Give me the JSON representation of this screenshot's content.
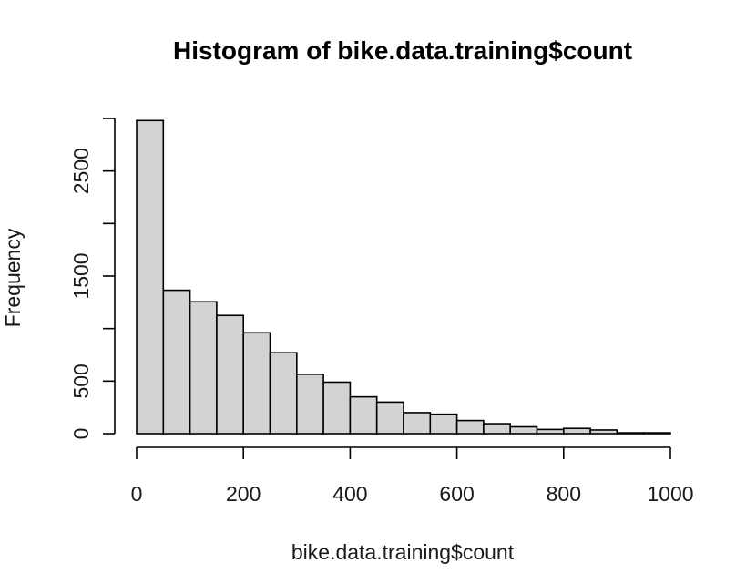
{
  "chart_data": {
    "type": "bar",
    "title": "Histogram of bike.data.training$count",
    "xlabel": "bike.data.training$count",
    "ylabel": "Frequency",
    "bin_width": 50,
    "bin_edges": [
      0,
      50,
      100,
      150,
      200,
      250,
      300,
      350,
      400,
      450,
      500,
      550,
      600,
      650,
      700,
      750,
      800,
      850,
      900,
      950,
      1000
    ],
    "values": [
      2980,
      1365,
      1255,
      1125,
      960,
      770,
      565,
      490,
      350,
      300,
      200,
      185,
      125,
      95,
      65,
      40,
      50,
      35,
      8,
      8
    ],
    "xlim": [
      0,
      1000
    ],
    "ylim": [
      0,
      3000
    ],
    "x_ticks": [
      0,
      200,
      400,
      600,
      800,
      1000
    ],
    "y_ticks": [
      0,
      500,
      1000,
      1500,
      2000,
      2500,
      3000
    ],
    "y_tick_labels": [
      "0",
      "500",
      "",
      "1500",
      "",
      "2500",
      ""
    ],
    "grid": false
  }
}
